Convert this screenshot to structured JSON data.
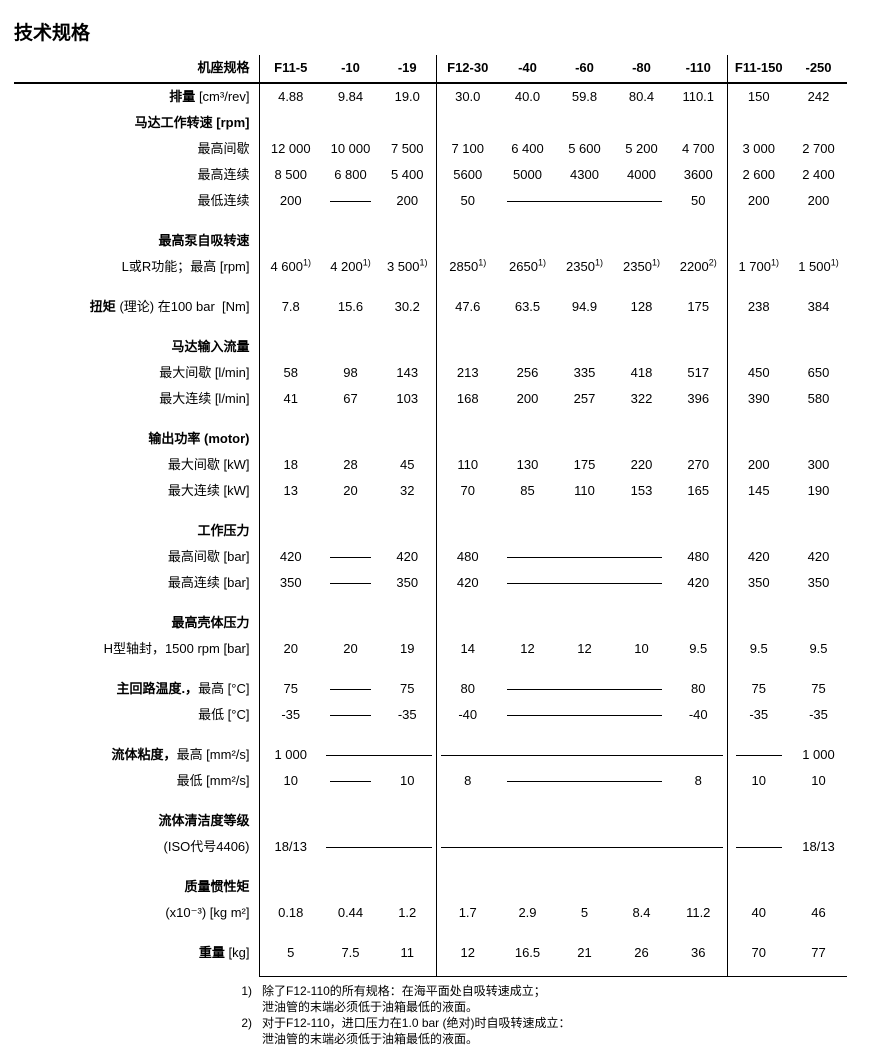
{
  "title": "技术规格",
  "frameSize": "机座规格",
  "cols": [
    "F11-5",
    "-10",
    "-19",
    "F12-30",
    "-40",
    "-60",
    "-80",
    "-110",
    "F11-150",
    "-250"
  ],
  "rows": {
    "displacement": {
      "label": "排量",
      "unit": "[cm³/rev]",
      "vals": [
        "4.88",
        "9.84",
        "19.0",
        "30.0",
        "40.0",
        "59.8",
        "80.4",
        "110.1",
        "150",
        "242"
      ]
    },
    "motorSpeed": {
      "header": "马达工作转速 [rpm]",
      "maxInt": {
        "label": "最高间歇",
        "vals": [
          "12 000",
          "10 000",
          "7 500",
          "7 100",
          "6 400",
          "5 600",
          "5 200",
          "4 700",
          "3 000",
          "2 700"
        ]
      },
      "maxCont": {
        "label": "最高连续",
        "vals": [
          "8 500",
          "6 800",
          "5 400",
          "5600",
          "5000",
          "4300",
          "4000",
          "3600",
          "2 600",
          "2 400"
        ]
      },
      "minCont": {
        "label": "最低连续",
        "vals": [
          "200",
          "",
          "200",
          "50",
          "",
          "",
          "",
          "50",
          "200",
          "200"
        ]
      }
    },
    "selfPriming": {
      "header": "最高泵自吸转速",
      "sub": "L或R功能；最高 [rpm]",
      "vals": [
        "4 600",
        "4 200",
        "3 500",
        "2850",
        "2650",
        "2350",
        "2350",
        "2200",
        "1 700",
        "1 500"
      ],
      "sups": [
        "1)",
        "1)",
        "1)",
        "1)",
        "1)",
        "1)",
        "1)",
        "2)",
        "1)",
        "1)"
      ]
    },
    "torque": {
      "label": "扭矩",
      "mid": "(理论) 在100 bar",
      "unit": "[Nm]",
      "vals": [
        "7.8",
        "15.6",
        "30.2",
        "47.6",
        "63.5",
        "94.9",
        "128",
        "175",
        "238",
        "384"
      ]
    },
    "inputFlow": {
      "header": "马达输入流量",
      "maxInt": {
        "label": "最大间歇 [l/min]",
        "vals": [
          "58",
          "98",
          "143",
          "213",
          "256",
          "335",
          "418",
          "517",
          "450",
          "650"
        ]
      },
      "maxCont": {
        "label": "最大连续 [l/min]",
        "vals": [
          "41",
          "67",
          "103",
          "168",
          "200",
          "257",
          "322",
          "396",
          "390",
          "580"
        ]
      }
    },
    "outputPower": {
      "header": "输出功率 (motor)",
      "maxInt": {
        "label": "最大间歇 [kW]",
        "vals": [
          "18",
          "28",
          "45",
          "110",
          "130",
          "175",
          "220",
          "270",
          "200",
          "300"
        ]
      },
      "maxCont": {
        "label": "最大连续 [kW]",
        "vals": [
          "13",
          "20",
          "32",
          "70",
          "85",
          "110",
          "153",
          "165",
          "145",
          "190"
        ]
      }
    },
    "opPressure": {
      "header": "工作压力",
      "maxInt": {
        "label": "最高间歇 [bar]",
        "vals": [
          "420",
          "",
          "420",
          "480",
          "",
          "",
          "",
          "480",
          "420",
          "420"
        ]
      },
      "maxCont": {
        "label": "最高连续 [bar]",
        "vals": [
          "350",
          "",
          "350",
          "420",
          "",
          "",
          "",
          "420",
          "350",
          "350"
        ]
      }
    },
    "casePressure": {
      "header": "最高壳体压力",
      "sub": "H型轴封，1500 rpm [bar]",
      "vals": [
        "20",
        "20",
        "19",
        "14",
        "12",
        "12",
        "10",
        "9.5",
        "9.5",
        "9.5"
      ]
    },
    "mainTemp": {
      "max": {
        "label": "主回路温度.，最高 [°C]",
        "labelBold": "主回路温度.，",
        "labelRest": "最高 [°C]",
        "vals": [
          "75",
          "",
          "75",
          "80",
          "",
          "",
          "",
          "80",
          "75",
          "75"
        ]
      },
      "min": {
        "label": "最低 [°C]",
        "vals": [
          "-35",
          "",
          "-35",
          "-40",
          "",
          "",
          "",
          "-40",
          "-35",
          "-35"
        ]
      }
    },
    "viscosity": {
      "max": {
        "labelBold": "流体粘度，",
        "labelRest": "最高 [mm²/s]",
        "vals": [
          "1 000",
          "",
          "",
          "",
          "",
          "",
          "",
          "",
          "",
          "1 000"
        ]
      },
      "min": {
        "label": "最低 [mm²/s]",
        "vals": [
          "10",
          "",
          "10",
          "8",
          "",
          "",
          "",
          "8",
          "10",
          "10"
        ]
      }
    },
    "cleanliness": {
      "header": "流体清洁度等级",
      "sub": "(ISO代号4406)",
      "vals": [
        "18/13",
        "",
        "",
        "",
        "",
        "",
        "",
        "",
        "",
        "18/13"
      ]
    },
    "inertia": {
      "header": "质量惯性矩",
      "sub": "(x10⁻³) [kg m²]",
      "vals": [
        "0.18",
        "0.44",
        "1.2",
        "1.7",
        "2.9",
        "5",
        "8.4",
        "11.2",
        "40",
        "46"
      ]
    },
    "weight": {
      "label": "重量",
      "unit": "[kg]",
      "vals": [
        "5",
        "7.5",
        "11",
        "12",
        "16.5",
        "21",
        "26",
        "36",
        "70",
        "77"
      ]
    }
  },
  "footnotes": {
    "1": [
      "除了F12-110的所有规格：在海平面处自吸转速成立；",
      "泄油管的末端必须低于油箱最低的液面。"
    ],
    "2": [
      "对于F12-110，进口压力在1.0 bar (绝对)时自吸转速成立：",
      "泄油管的末端必须低于油箱最低的液面。"
    ]
  }
}
